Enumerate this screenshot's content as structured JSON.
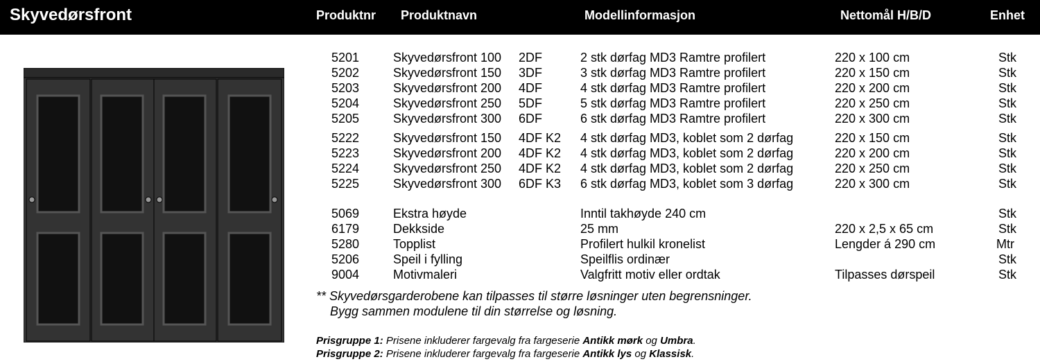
{
  "header": {
    "title": "Skyvedørsfront",
    "columns": {
      "produktnr": "Produktnr",
      "produktnavn": "Produktnavn",
      "modellinformasjon": "Modellinformasjon",
      "nettomal": "Nettomål H/B/D",
      "enhet": "Enhet"
    }
  },
  "products": [
    {
      "nr": "5201",
      "name": "Skyvedørsfront 100",
      "variant": "2DF",
      "model": "2 stk dørfag MD3 Ramtre profilert",
      "size": "220 x 100 cm",
      "unit": "Stk"
    },
    {
      "nr": "5202",
      "name": "Skyvedørsfront 150",
      "variant": "3DF",
      "model": "3 stk dørfag MD3 Ramtre profilert",
      "size": "220 x 150 cm",
      "unit": "Stk"
    },
    {
      "nr": "5203",
      "name": "Skyvedørsfront 200",
      "variant": "4DF",
      "model": "4 stk dørfag MD3 Ramtre profilert",
      "size": "220 x 200 cm",
      "unit": "Stk"
    },
    {
      "nr": "5204",
      "name": "Skyvedørsfront 250",
      "variant": "5DF",
      "model": "5 stk dørfag MD3 Ramtre profilert",
      "size": "220 x 250 cm",
      "unit": "Stk"
    },
    {
      "nr": "5205",
      "name": "Skyvedørsfront 300",
      "variant": "6DF",
      "model": "6 stk dørfag MD3 Ramtre profilert",
      "size": "220 x 300 cm",
      "unit": "Stk"
    },
    {
      "nr": "5222",
      "name": "Skyvedørsfront 150",
      "variant": "4DF K2",
      "model": "4 stk dørfag MD3, koblet som 2 dørfag",
      "size": "220 x 150 cm",
      "unit": "Stk"
    },
    {
      "nr": "5223",
      "name": "Skyvedørsfront 200",
      "variant": "4DF K2",
      "model": "4 stk dørfag MD3, koblet som 2 dørfag",
      "size": "220 x 200 cm",
      "unit": "Stk"
    },
    {
      "nr": "5224",
      "name": "Skyvedørsfront 250",
      "variant": "4DF K2",
      "model": "4 stk dørfag MD3, koblet som 2 dørfag",
      "size": "220 x 250 cm",
      "unit": "Stk"
    },
    {
      "nr": "5225",
      "name": "Skyvedørsfront 300",
      "variant": "6DF K3",
      "model": "6 stk dørfag MD3, koblet som 3 dørfag",
      "size": "220 x 300 cm",
      "unit": "Stk"
    },
    {
      "nr": "5069",
      "name": "Ekstra høyde",
      "variant": "",
      "model": "Inntil takhøyde 240 cm",
      "size": "",
      "unit": "Stk"
    },
    {
      "nr": "6179",
      "name": "Dekkside",
      "variant": "",
      "model": "25 mm",
      "size": "220 x 2,5 x 65 cm",
      "unit": "Stk"
    },
    {
      "nr": "5280",
      "name": "Topplist",
      "variant": "",
      "model": "Profilert hulkil kronelist",
      "size": "Lengder á 290 cm",
      "unit": "Mtr"
    },
    {
      "nr": "5206",
      "name": "Speil i fylling",
      "variant": "",
      "model": "Speilflis ordinær",
      "size": "",
      "unit": "Stk"
    },
    {
      "nr": "9004",
      "name": "Motivmaleri",
      "variant": "",
      "model": "Valgfritt motiv eller ordtak",
      "size": "Tilpasses dørspeil",
      "unit": "Stk"
    }
  ],
  "note": {
    "line1": "** Skyvedørsgarderobene kan tilpasses til større løsninger uten begrensninger.",
    "line2": "Bygg sammen modulene til din størrelse og løsning."
  },
  "pricing": [
    {
      "label": "Prisgruppe 1:",
      "text": " Prisene inkluderer fargevalg fra fargeserie ",
      "color_a": "Antikk mørk",
      "joiner": " og ",
      "color_b": "Umbra",
      "end": "."
    },
    {
      "label": "Prisgruppe 2:",
      "text": " Prisene inkluderer fargevalg fra fargeserie ",
      "color_a": "Antikk lys",
      "joiner": " og ",
      "color_b": "Klassisk",
      "end": "."
    }
  ],
  "colors": {
    "header_bg": "#000000",
    "door_body": "#3a3a3a",
    "door_panel": "#111111"
  }
}
